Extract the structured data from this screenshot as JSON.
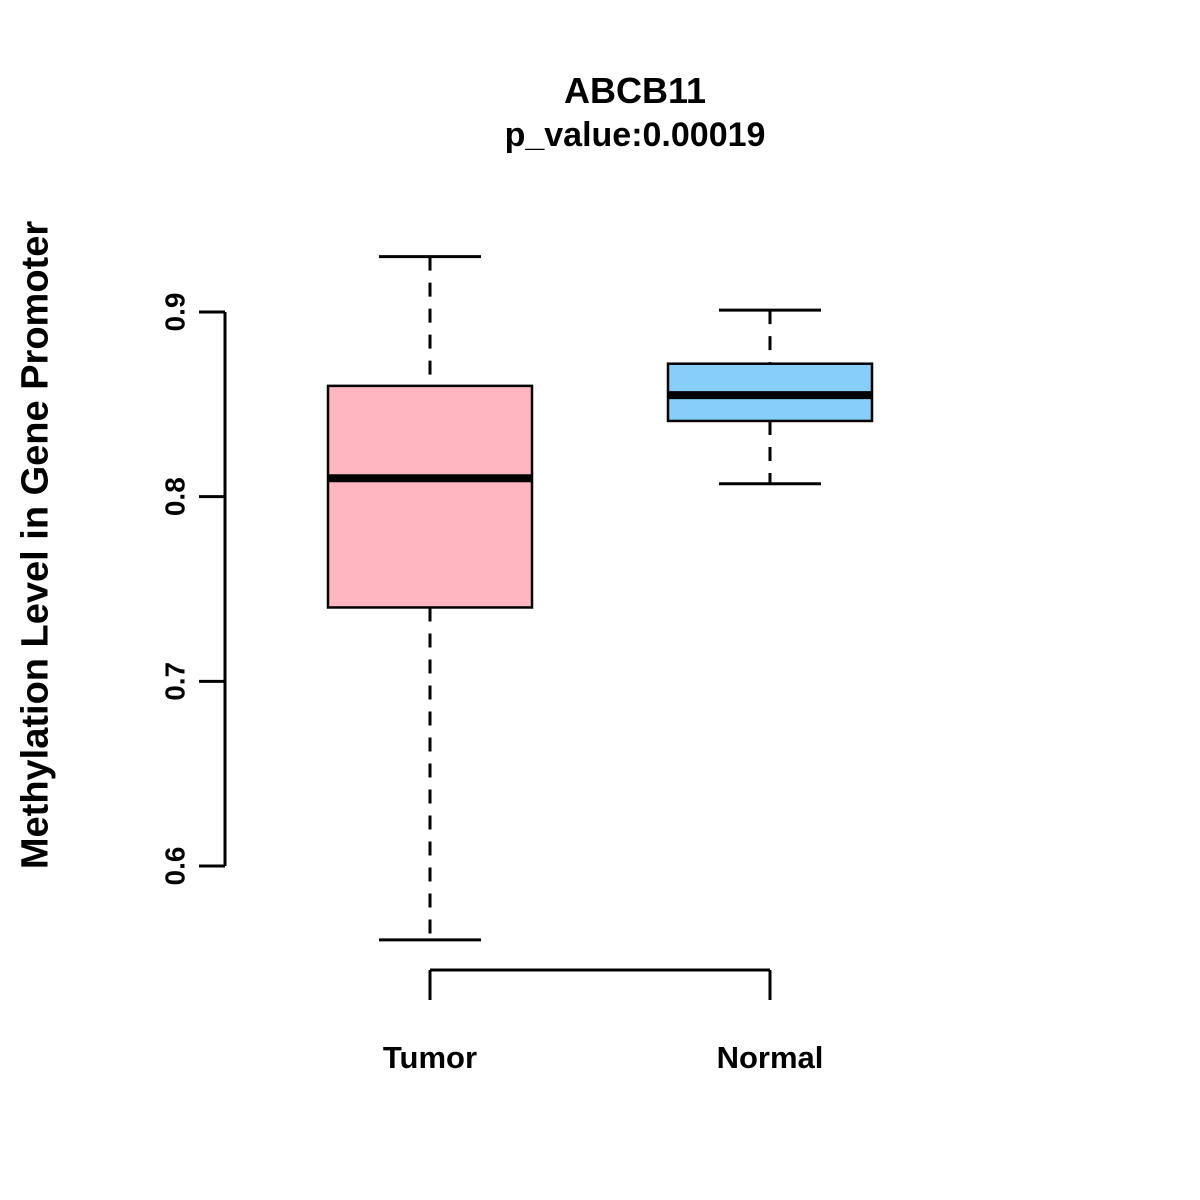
{
  "chart_data": {
    "type": "boxplot",
    "title": "ABCB11",
    "subtitle": "p_value:0.00019",
    "ylabel": "Methylation Level in Gene Promoter",
    "xlabel": "",
    "categories": [
      "Tumor",
      "Normal"
    ],
    "series": [
      {
        "name": "Tumor",
        "min": 0.56,
        "q1": 0.74,
        "median": 0.81,
        "q3": 0.86,
        "max": 0.93,
        "color": "#FFB6C1"
      },
      {
        "name": "Normal",
        "min": 0.807,
        "q1": 0.841,
        "median": 0.855,
        "q3": 0.872,
        "max": 0.901,
        "color": "#87CEFA"
      }
    ],
    "yticks": [
      0.6,
      0.7,
      0.8,
      0.9
    ],
    "ylim": [
      0.545,
      0.94
    ],
    "grid": false,
    "legend": "none",
    "colors": {
      "tumor_fill": "#FFB6C1",
      "normal_fill": "#87CEFA",
      "stroke": "#000000",
      "background": "#FFFFFF"
    }
  }
}
